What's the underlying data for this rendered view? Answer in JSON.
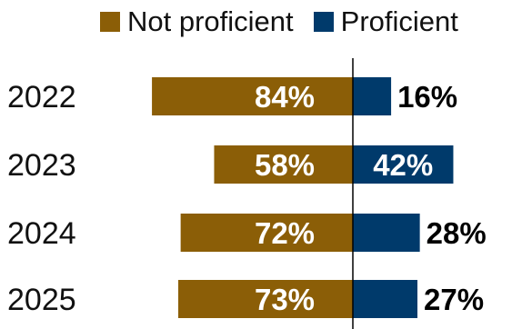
{
  "chart_data": {
    "type": "bar",
    "orientation": "horizontal-diverging",
    "title": "",
    "xlabel": "",
    "ylabel": "",
    "categories": [
      "2022",
      "2023",
      "2024",
      "2025"
    ],
    "series": [
      {
        "name": "Not proficient",
        "color": "#8b5e07",
        "values": [
          84,
          58,
          72,
          73
        ],
        "labels": [
          "84%",
          "58%",
          "72%",
          "73%"
        ],
        "direction": "left"
      },
      {
        "name": "Proficient",
        "color": "#003a6b",
        "values": [
          16,
          42,
          28,
          27
        ],
        "labels": [
          "16%",
          "42%",
          "28%",
          "27%"
        ],
        "direction": "right"
      }
    ],
    "xlim": [
      -100,
      100
    ],
    "grid": false,
    "legend": "top"
  }
}
